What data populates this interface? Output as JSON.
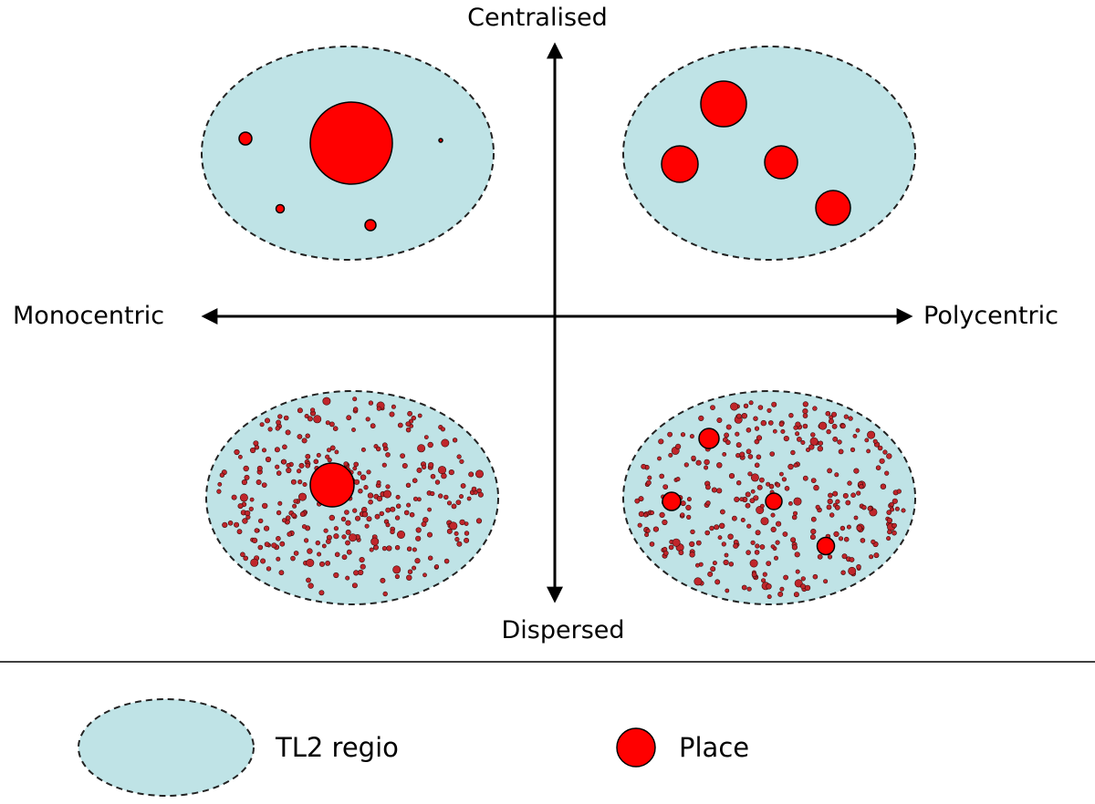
{
  "axes": {
    "top_label": "Centralised",
    "bottom_label": "Dispersed",
    "left_label": "Monocentric",
    "right_label": "Polycentric"
  },
  "quadrants": [
    {
      "name": "monocentric-centralised",
      "places": "one large central place with a few small places"
    },
    {
      "name": "polycentric-centralised",
      "places": "several medium places"
    },
    {
      "name": "monocentric-dispersed",
      "places": "one large place among many dots"
    },
    {
      "name": "polycentric-dispersed",
      "places": "several small-medium places among many dots"
    }
  ],
  "legend": {
    "region_label": "TL2 regio",
    "place_label": "Place"
  },
  "colors": {
    "region_fill": "#bfe3e6",
    "region_stroke": "#222222",
    "place_fill": "#ff0000",
    "dot_fill": "#c0262b",
    "outline": "#000000"
  }
}
